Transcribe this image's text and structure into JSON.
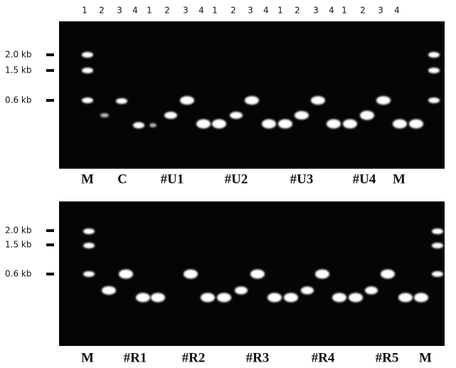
{
  "gels": [
    {
      "lane_numbers": [
        "1",
        "2",
        "3",
        "4",
        "1",
        "2",
        "3",
        "4",
        "1",
        "2",
        "3",
        "4",
        "1",
        "2",
        "3",
        "4",
        "1",
        "2",
        "3",
        "4"
      ],
      "size_labels": [
        "2.0 kb",
        "1.5 kb",
        "0.6 kb"
      ],
      "lane_labels": [
        "M",
        "C",
        "#U1",
        "#U2",
        "#U3",
        "#U4",
        "M"
      ]
    },
    {
      "size_labels": [
        "2.0 kb",
        "1.5 kb",
        "0.6 kb"
      ],
      "lane_labels": [
        "M",
        "#R1",
        "#R2",
        "#R3",
        "#R4",
        "#R5",
        "M"
      ]
    }
  ]
}
